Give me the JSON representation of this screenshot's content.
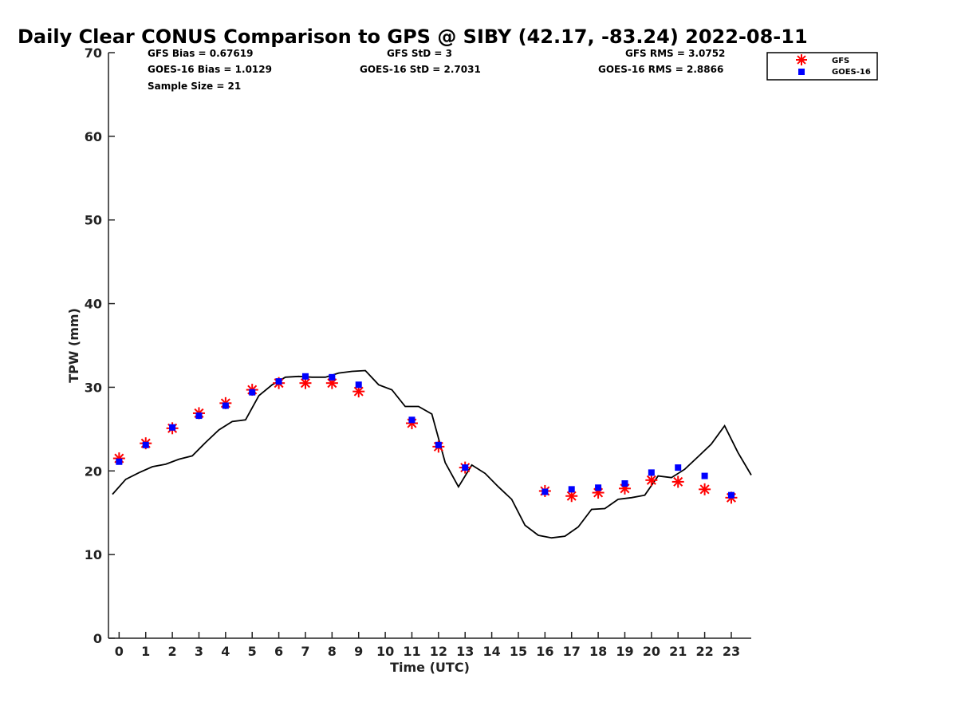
{
  "chart_data": {
    "type": "scatter",
    "title": "Daily Clear CONUS Comparison to GPS @ SIBY (42.17, -83.24) 2022-08-11",
    "xlabel": "Time (UTC)",
    "ylabel": "TPW (mm)",
    "xlim": [
      -0.4,
      23.75
    ],
    "ylim": [
      0,
      70
    ],
    "x_ticks": [
      0,
      1,
      2,
      3,
      4,
      5,
      6,
      7,
      8,
      9,
      10,
      11,
      12,
      13,
      14,
      15,
      16,
      17,
      18,
      19,
      20,
      21,
      22,
      23
    ],
    "y_ticks": [
      0,
      10,
      20,
      30,
      40,
      50,
      60,
      70
    ],
    "grid": false,
    "legend_position": "top-right",
    "stats": {
      "gfs_bias": "GFS Bias = 0.67619",
      "goes_bias": "GOES-16 Bias = 1.0129",
      "sample_size": "Sample Size = 21",
      "gfs_std": "GFS StD = 3",
      "goes_std": "GOES-16 StD = 2.7031",
      "gfs_rms": "GFS RMS = 3.0752",
      "goes_rms": "GOES-16 RMS = 2.8866"
    },
    "series": [
      {
        "name": "GFS",
        "marker": "asterisk",
        "color": "#ff0000",
        "x": [
          0,
          1,
          2,
          3,
          4,
          5,
          6,
          7,
          8,
          9,
          11,
          12,
          13,
          16,
          17,
          18,
          19,
          20,
          21,
          22,
          23
        ],
        "y": [
          21.5,
          23.3,
          25.1,
          26.9,
          28.1,
          29.7,
          30.5,
          30.5,
          30.5,
          29.5,
          25.7,
          22.9,
          20.4,
          17.6,
          17.0,
          17.4,
          17.9,
          18.9,
          18.7,
          17.8,
          16.8
        ]
      },
      {
        "name": "GOES-16",
        "marker": "square",
        "color": "#0000ff",
        "x": [
          0,
          1,
          2,
          3,
          4,
          5,
          6,
          7,
          8,
          9,
          11,
          12,
          13,
          16,
          17,
          18,
          19,
          20,
          21,
          22,
          23
        ],
        "y": [
          21.1,
          23.1,
          25.2,
          26.6,
          27.8,
          29.4,
          30.7,
          31.3,
          31.2,
          30.3,
          26.1,
          23.1,
          20.4,
          17.5,
          17.8,
          18.0,
          18.5,
          19.8,
          20.4,
          19.4,
          17.1
        ]
      },
      {
        "name": "GPS",
        "marker": "line",
        "color": "#000000",
        "x": [
          -0.25,
          0.25,
          0.75,
          1.25,
          1.75,
          2.25,
          2.75,
          3.25,
          3.75,
          4.25,
          4.75,
          5.25,
          5.75,
          6.25,
          6.75,
          7.25,
          7.75,
          8.25,
          8.75,
          9.25,
          9.75,
          10.25,
          10.75,
          11.25,
          11.75,
          12.25,
          12.75,
          13.25,
          13.75,
          14.25,
          14.75,
          15.25,
          15.75,
          16.25,
          16.75,
          17.25,
          17.75,
          18.25,
          18.75,
          19.25,
          19.75,
          20.25,
          20.75,
          21.25,
          21.75,
          22.25,
          22.75,
          23.25,
          23.75
        ],
        "y": [
          17.2,
          19.0,
          19.8,
          20.5,
          20.8,
          21.4,
          21.8,
          23.4,
          24.9,
          25.9,
          26.1,
          29.0,
          30.3,
          31.2,
          31.3,
          31.2,
          31.2,
          31.7,
          31.9,
          32.0,
          30.3,
          29.7,
          27.7,
          27.7,
          26.8,
          21.0,
          18.1,
          20.7,
          19.7,
          18.1,
          16.6,
          13.5,
          12.3,
          12.0,
          12.2,
          13.3,
          15.4,
          15.5,
          16.6,
          16.8,
          17.1,
          19.4,
          19.2,
          20.2,
          21.7,
          23.2,
          25.4,
          22.2,
          19.5
        ]
      }
    ]
  }
}
